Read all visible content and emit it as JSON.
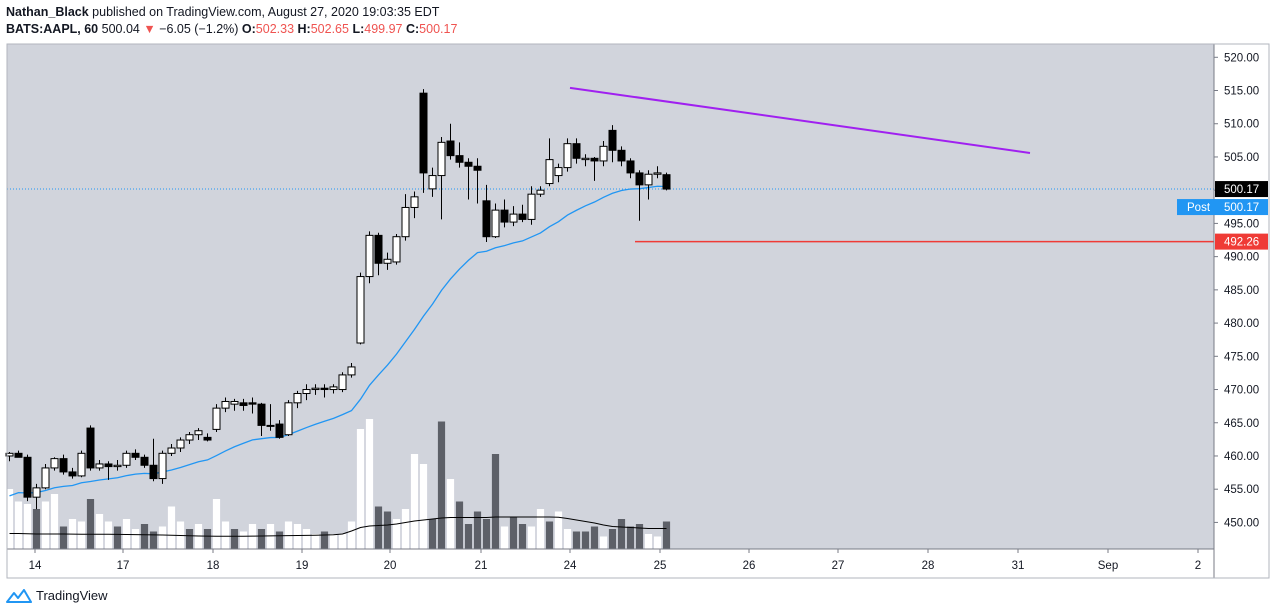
{
  "header": {
    "author": "Nathan_Black",
    "published_text": "published on TradingView.com, August 27, 2020 19:03:35 EDT",
    "symbol": "BATS:AAPL, 60",
    "last": "500.04",
    "change_arrow": "▼",
    "change": "−6.05 (−1.2%)",
    "o_label": "O:",
    "o": "502.33",
    "h_label": "H:",
    "h": "502.65",
    "l_label": "L:",
    "l": "499.97",
    "c_label": "C:",
    "c": "500.17"
  },
  "footer": {
    "brand": "TradingView"
  },
  "colors": {
    "background": "#d1d4dc",
    "trendline": "#a020f0",
    "support": "#ef3b36",
    "ma": "#2196f3",
    "up_candle": "#ffffff",
    "down_candle": "#000000",
    "post_badge": "#2196f3"
  },
  "chart_data": {
    "type": "candlestick",
    "ylim": [
      446,
      522
    ],
    "y_ticks": [
      "450.00",
      "455.00",
      "460.00",
      "465.00",
      "470.00",
      "475.00",
      "480.00",
      "485.00",
      "490.00",
      "495.00",
      "500.00",
      "505.00",
      "510.00",
      "515.00",
      "520.00"
    ],
    "x_ticks": [
      "14",
      "17",
      "18",
      "19",
      "20",
      "21",
      "24",
      "25",
      "26",
      "27",
      "28",
      "31",
      "Sep",
      "2"
    ],
    "price_labels": {
      "last": {
        "value": 500.17,
        "text": "500.17"
      },
      "post": {
        "label": "Post",
        "value": 500.17,
        "text": "500.17"
      },
      "support": {
        "value": 492.26,
        "text": "492.26"
      }
    },
    "trendline": {
      "from": [
        14.0,
        515.4
      ],
      "to": [
        19.4,
        505.6
      ]
    },
    "support_line": {
      "value": 492.26,
      "from": 8.0,
      "to": 14.5
    },
    "candles": [
      {
        "o": 460.0,
        "h": 460.6,
        "l": 459.2,
        "c": 460.4
      },
      {
        "o": 460.4,
        "h": 460.8,
        "l": 459.8,
        "c": 459.8
      },
      {
        "o": 459.8,
        "h": 460.2,
        "l": 453.2,
        "c": 453.8
      },
      {
        "o": 453.8,
        "h": 455.8,
        "l": 452.0,
        "c": 455.2
      },
      {
        "o": 455.2,
        "h": 458.8,
        "l": 455.0,
        "c": 458.2
      },
      {
        "o": 458.2,
        "h": 459.8,
        "l": 457.8,
        "c": 459.6
      },
      {
        "o": 459.6,
        "h": 460.2,
        "l": 457.2,
        "c": 457.6
      },
      {
        "o": 457.6,
        "h": 458.2,
        "l": 456.6,
        "c": 457.0
      },
      {
        "o": 457.0,
        "h": 460.8,
        "l": 456.8,
        "c": 460.4
      },
      {
        "o": 464.2,
        "h": 464.6,
        "l": 457.8,
        "c": 458.2
      },
      {
        "o": 458.2,
        "h": 459.4,
        "l": 457.8,
        "c": 458.8
      },
      {
        "o": 458.8,
        "h": 459.2,
        "l": 456.4,
        "c": 458.4
      },
      {
        "o": 458.4,
        "h": 459.4,
        "l": 457.8,
        "c": 458.6
      },
      {
        "o": 458.6,
        "h": 460.8,
        "l": 458.2,
        "c": 460.4
      },
      {
        "o": 460.4,
        "h": 461.0,
        "l": 459.4,
        "c": 459.8
      },
      {
        "o": 459.8,
        "h": 460.2,
        "l": 458.2,
        "c": 458.6
      },
      {
        "o": 458.6,
        "h": 462.6,
        "l": 456.2,
        "c": 456.6
      },
      {
        "o": 456.6,
        "h": 460.8,
        "l": 455.8,
        "c": 460.4
      },
      {
        "o": 460.4,
        "h": 461.8,
        "l": 460.0,
        "c": 461.2
      },
      {
        "o": 461.2,
        "h": 462.8,
        "l": 460.6,
        "c": 462.4
      },
      {
        "o": 462.4,
        "h": 463.6,
        "l": 461.8,
        "c": 463.2
      },
      {
        "o": 463.2,
        "h": 464.2,
        "l": 462.4,
        "c": 463.8
      },
      {
        "o": 462.8,
        "h": 463.4,
        "l": 462.2,
        "c": 462.4
      },
      {
        "o": 464.0,
        "h": 467.8,
        "l": 463.6,
        "c": 467.2
      },
      {
        "o": 467.2,
        "h": 468.8,
        "l": 466.6,
        "c": 468.2
      },
      {
        "o": 467.8,
        "h": 468.6,
        "l": 466.8,
        "c": 468.2
      },
      {
        "o": 468.0,
        "h": 468.6,
        "l": 466.8,
        "c": 467.6
      },
      {
        "o": 468.0,
        "h": 468.8,
        "l": 466.4,
        "c": 467.8
      },
      {
        "o": 467.8,
        "h": 468.0,
        "l": 463.0,
        "c": 464.6
      },
      {
        "o": 464.6,
        "h": 467.8,
        "l": 463.8,
        "c": 464.6
      },
      {
        "o": 464.8,
        "h": 465.4,
        "l": 462.6,
        "c": 462.8
      },
      {
        "o": 463.2,
        "h": 468.4,
        "l": 463.0,
        "c": 468.0
      },
      {
        "o": 468.0,
        "h": 469.8,
        "l": 467.2,
        "c": 469.4
      },
      {
        "o": 469.4,
        "h": 470.8,
        "l": 468.4,
        "c": 470.0
      },
      {
        "o": 470.0,
        "h": 470.8,
        "l": 469.2,
        "c": 470.2
      },
      {
        "o": 470.2,
        "h": 470.8,
        "l": 468.8,
        "c": 470.0
      },
      {
        "o": 470.0,
        "h": 470.8,
        "l": 469.4,
        "c": 470.4
      },
      {
        "o": 470.0,
        "h": 472.6,
        "l": 469.6,
        "c": 472.2
      },
      {
        "o": 472.2,
        "h": 474.0,
        "l": 471.8,
        "c": 473.4
      },
      {
        "o": 477.0,
        "h": 487.6,
        "l": 476.8,
        "c": 487.0
      },
      {
        "o": 487.0,
        "h": 493.8,
        "l": 486.0,
        "c": 493.2
      },
      {
        "o": 493.2,
        "h": 493.6,
        "l": 487.2,
        "c": 489.0
      },
      {
        "o": 489.0,
        "h": 490.6,
        "l": 488.0,
        "c": 489.6
      },
      {
        "o": 489.2,
        "h": 493.4,
        "l": 488.8,
        "c": 493.0
      },
      {
        "o": 493.0,
        "h": 499.4,
        "l": 492.4,
        "c": 497.4
      },
      {
        "o": 497.4,
        "h": 499.8,
        "l": 495.8,
        "c": 499.0
      },
      {
        "o": 514.6,
        "h": 515.2,
        "l": 499.6,
        "c": 502.6
      },
      {
        "o": 500.2,
        "h": 503.4,
        "l": 499.0,
        "c": 502.2
      },
      {
        "o": 502.2,
        "h": 508.0,
        "l": 495.6,
        "c": 507.2
      },
      {
        "o": 507.4,
        "h": 510.0,
        "l": 504.6,
        "c": 505.2
      },
      {
        "o": 505.2,
        "h": 507.2,
        "l": 503.4,
        "c": 504.2
      },
      {
        "o": 504.2,
        "h": 504.8,
        "l": 498.6,
        "c": 503.6
      },
      {
        "o": 503.6,
        "h": 504.8,
        "l": 498.0,
        "c": 503.0
      },
      {
        "o": 498.4,
        "h": 500.8,
        "l": 492.2,
        "c": 493.0
      },
      {
        "o": 493.0,
        "h": 498.0,
        "l": 492.8,
        "c": 497.0
      },
      {
        "o": 497.0,
        "h": 498.6,
        "l": 494.4,
        "c": 495.2
      },
      {
        "o": 495.2,
        "h": 497.6,
        "l": 494.6,
        "c": 496.4
      },
      {
        "o": 496.4,
        "h": 497.8,
        "l": 495.2,
        "c": 495.6
      },
      {
        "o": 495.6,
        "h": 500.6,
        "l": 494.8,
        "c": 499.4
      },
      {
        "o": 499.4,
        "h": 500.6,
        "l": 499.0,
        "c": 500.0
      },
      {
        "o": 501.0,
        "h": 507.8,
        "l": 500.6,
        "c": 504.6
      },
      {
        "o": 502.2,
        "h": 504.0,
        "l": 501.2,
        "c": 503.4
      },
      {
        "o": 503.4,
        "h": 507.8,
        "l": 502.8,
        "c": 507.0
      },
      {
        "o": 507.0,
        "h": 507.8,
        "l": 504.0,
        "c": 504.8
      },
      {
        "o": 504.6,
        "h": 505.4,
        "l": 503.6,
        "c": 504.8
      },
      {
        "o": 504.8,
        "h": 505.0,
        "l": 501.4,
        "c": 504.4
      },
      {
        "o": 504.4,
        "h": 507.4,
        "l": 503.6,
        "c": 506.6
      },
      {
        "o": 509.0,
        "h": 509.8,
        "l": 504.2,
        "c": 506.0
      },
      {
        "o": 506.0,
        "h": 506.6,
        "l": 503.6,
        "c": 504.4
      },
      {
        "o": 504.4,
        "h": 504.8,
        "l": 501.8,
        "c": 502.6
      },
      {
        "o": 502.6,
        "h": 503.0,
        "l": 495.4,
        "c": 500.8
      },
      {
        "o": 500.8,
        "h": 503.0,
        "l": 498.6,
        "c": 502.4
      },
      {
        "o": 502.4,
        "h": 503.6,
        "l": 501.8,
        "c": 502.6
      },
      {
        "o": 502.33,
        "h": 502.65,
        "l": 499.97,
        "c": 500.17
      }
    ],
    "ma": [
      453,
      453.6,
      454.2,
      454.6,
      455,
      455.5,
      455.8,
      456,
      456.2,
      456.4,
      456.6,
      456.8,
      457.1,
      457.5,
      457.8,
      457.9,
      458.0,
      458.2,
      458.5,
      458.9,
      459.3,
      459.7,
      460.1,
      460.5,
      461.0,
      461.6,
      462.2,
      462.5,
      462.8,
      462.9,
      463.0,
      463.3,
      463.9,
      464.6,
      465.2,
      465.7,
      466.2,
      466.7,
      467.4,
      470.0,
      473.0,
      475.6,
      477.8,
      480.3,
      482.9,
      485.5,
      488.3,
      490.2,
      492.4,
      494.4,
      496.3,
      498.0,
      499.8,
      501.5,
      503.6,
      505.2,
      506.6,
      508.0,
      509.5,
      510.7,
      511.7,
      512.6,
      513.6,
      514.6,
      515.4,
      516.0,
      516.5,
      516.9,
      517.1,
      517.2,
      517.2,
      517.0,
      516.9
    ],
    "volume": [
      120,
      95,
      90,
      80,
      95,
      110,
      45,
      60,
      55,
      100,
      70,
      55,
      45,
      60,
      40,
      50,
      35,
      45,
      85,
      55,
      40,
      50,
      40,
      100,
      55,
      40,
      35,
      50,
      40,
      50,
      35,
      55,
      50,
      40,
      30,
      35,
      30,
      30,
      55,
      240,
      260,
      85,
      75,
      60,
      80,
      190,
      170,
      60,
      255,
      140,
      95,
      50,
      75,
      60,
      190,
      45,
      65,
      50,
      45,
      80,
      55,
      75,
      40,
      35,
      35,
      45,
      25,
      40,
      60,
      45,
      50,
      30,
      25,
      55
    ],
    "volume_up": [
      true,
      true,
      true,
      false,
      true,
      true,
      false,
      true,
      true,
      false,
      true,
      true,
      false,
      true,
      true,
      false,
      false,
      true,
      true,
      true,
      false,
      true,
      false,
      true,
      true,
      false,
      true,
      true,
      false,
      true,
      false,
      true,
      true,
      true,
      true,
      false,
      true,
      true,
      true,
      true,
      true,
      false,
      false,
      true,
      true,
      true,
      true,
      false,
      false,
      true,
      false,
      false,
      false,
      false,
      false,
      true,
      false,
      false,
      true,
      true,
      false,
      true,
      true,
      false,
      false,
      false,
      true,
      false,
      false,
      false,
      false,
      true,
      true,
      false
    ],
    "volume_ma": [
      31,
      31,
      30.5,
      30,
      30,
      30,
      30,
      29.8,
      29.5,
      29.5,
      29.5,
      29.5,
      29.3,
      29,
      28.8,
      28.5,
      28.3,
      28,
      27.5,
      27,
      26.5,
      26,
      25.8,
      25.5,
      25.5,
      25.5,
      25.5,
      25.8,
      26,
      26.2,
      26.5,
      26.8,
      27,
      27.2,
      27.5,
      28,
      28.5,
      30,
      36,
      43,
      46,
      47,
      48,
      50,
      53,
      56,
      58,
      60,
      62,
      63,
      63,
      63,
      63,
      63,
      64,
      64,
      64,
      64,
      64,
      64,
      64,
      63.5,
      61,
      58,
      55,
      52,
      48,
      45,
      44,
      43,
      42,
      41,
      41,
      41
    ]
  }
}
